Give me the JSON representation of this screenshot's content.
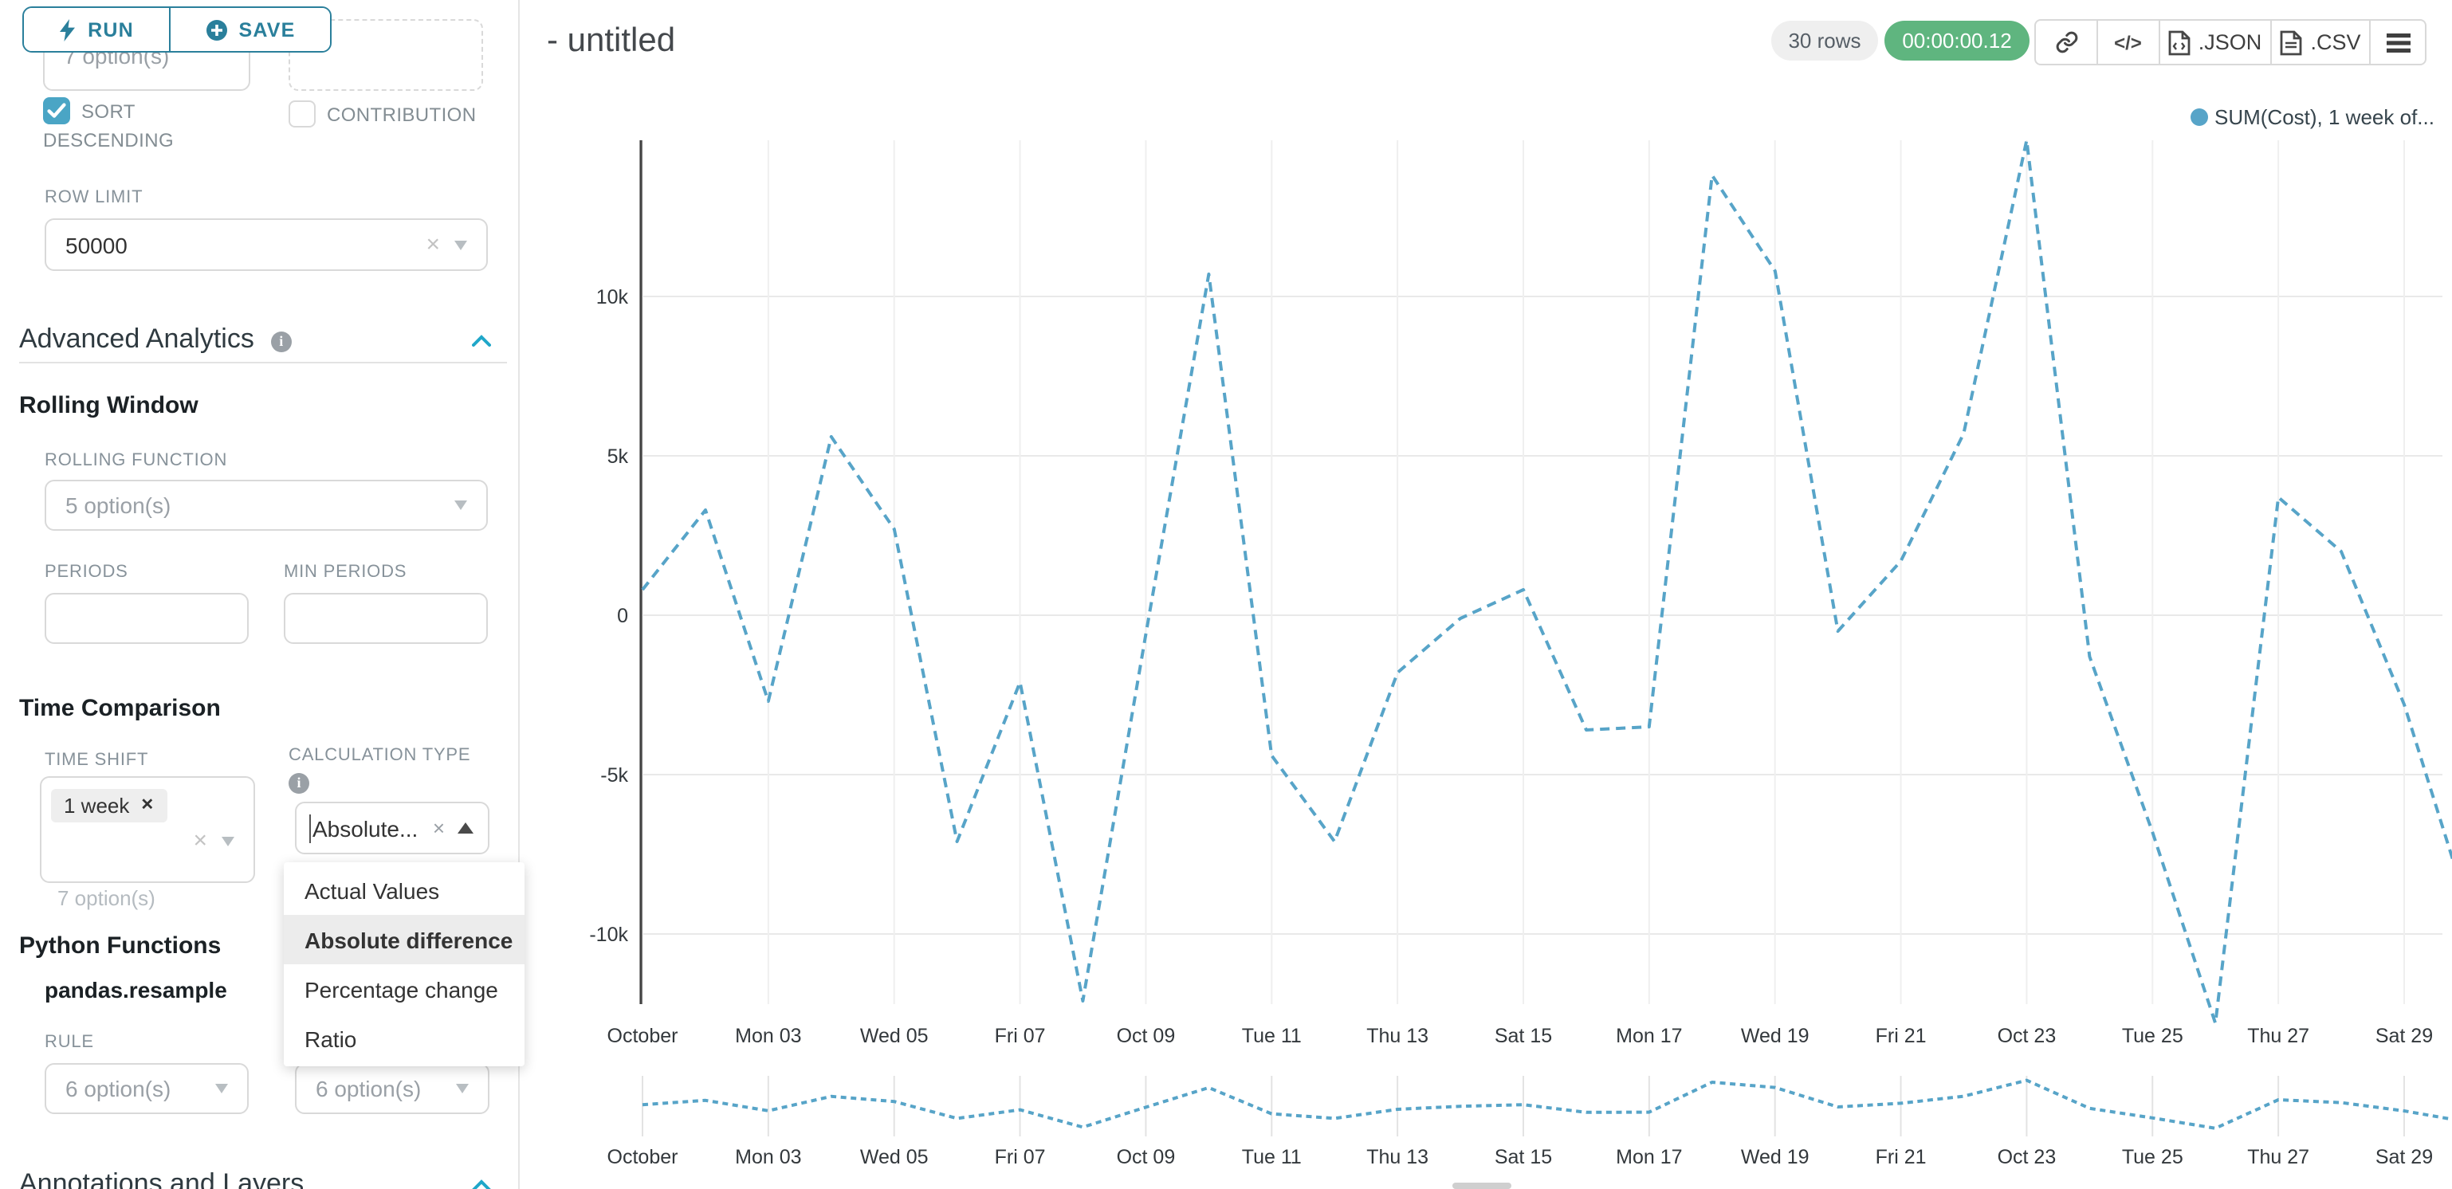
{
  "toolbar": {
    "run_label": "RUN",
    "save_label": "SAVE"
  },
  "sidebar": {
    "partial_select_value": "7 option(s)",
    "sort_descending": {
      "label": "SORT DESCENDING",
      "checked": true
    },
    "contribution": {
      "label": "CONTRIBUTION",
      "checked": false
    },
    "row_limit": {
      "label": "ROW LIMIT",
      "value": "50000"
    },
    "advanced_analytics": {
      "title": "Advanced Analytics"
    },
    "rolling_window": {
      "title": "Rolling Window",
      "rolling_function_label": "ROLLING FUNCTION",
      "rolling_function_placeholder": "5 option(s)",
      "periods_label": "PERIODS",
      "min_periods_label": "MIN PERIODS"
    },
    "time_comparison": {
      "title": "Time Comparison",
      "time_shift_label": "TIME SHIFT",
      "time_shift_tag": "1 week",
      "time_shift_hint": "7 option(s)",
      "calculation_type_label": "CALCULATION TYPE",
      "calculation_type_value": "Absolute...",
      "dropdown_options": [
        "Actual Values",
        "Absolute difference",
        "Percentage change",
        "Ratio"
      ],
      "dropdown_selected": "Absolute difference"
    },
    "python_functions": {
      "title": "Python Functions",
      "subtitle": "pandas.resample",
      "rule_label": "RULE",
      "rule_placeholder_1": "6 option(s)",
      "rule_placeholder_2": "6 option(s)"
    },
    "annotations": {
      "title": "Annotations and Layers"
    }
  },
  "header": {
    "title": "- untitled",
    "row_count": "30 rows",
    "timer": "00:00:00.12",
    "export_json_label": ".JSON",
    "export_csv_label": ".CSV"
  },
  "colors": {
    "primary_teal": "#2a7f9b",
    "accent_blue": "#20a7c9",
    "checkbox_teal": "#4aa5c5",
    "timer_green": "#5fb57f",
    "line_blue": "#57a4c8"
  },
  "chart_data": {
    "type": "line",
    "title": "- untitled",
    "legend": {
      "label": "SUM(Cost), 1 week of...",
      "color": "#57a4c8"
    },
    "legend_position": "top-right",
    "grid": true,
    "line_style": "dashed",
    "x": [
      "Oct 01",
      "Oct 02",
      "Oct 03",
      "Oct 04",
      "Oct 05",
      "Oct 06",
      "Oct 07",
      "Oct 08",
      "Oct 09",
      "Oct 10",
      "Oct 11",
      "Oct 12",
      "Oct 13",
      "Oct 14",
      "Oct 15",
      "Oct 16",
      "Oct 17",
      "Oct 18",
      "Oct 19",
      "Oct 20",
      "Oct 21",
      "Oct 22",
      "Oct 23",
      "Oct 24",
      "Oct 25",
      "Oct 26",
      "Oct 27",
      "Oct 28",
      "Oct 29",
      "Oct 30"
    ],
    "series": [
      {
        "name": "SUM(Cost), 1 week offset",
        "color": "#57a4c8",
        "dashed": true,
        "values": [
          800,
          3300,
          -2700,
          5600,
          2700,
          -7100,
          -2100,
          -12100,
          -600,
          10700,
          -4400,
          -7100,
          -1800,
          -100,
          800,
          -3600,
          -3500,
          13800,
          10800,
          -500,
          1700,
          5700,
          14900,
          -1300,
          -6800,
          -12800,
          3700,
          2000,
          -2800,
          -9100
        ]
      }
    ],
    "x_tick_labels": [
      "October",
      "Mon 03",
      "Wed 05",
      "Fri 07",
      "Oct 09",
      "Tue 11",
      "Thu 13",
      "Sat 15",
      "Mon 17",
      "Wed 19",
      "Fri 21",
      "Oct 23",
      "Tue 25",
      "Thu 27",
      "Sat 29"
    ],
    "y_tick_labels": [
      "10k",
      "5k",
      "0",
      "-5k",
      "-10k"
    ],
    "y_tick_values": [
      10000,
      5000,
      0,
      -5000,
      -10000
    ],
    "ylim": [
      -13000,
      15200
    ],
    "has_mini_preview": true
  }
}
